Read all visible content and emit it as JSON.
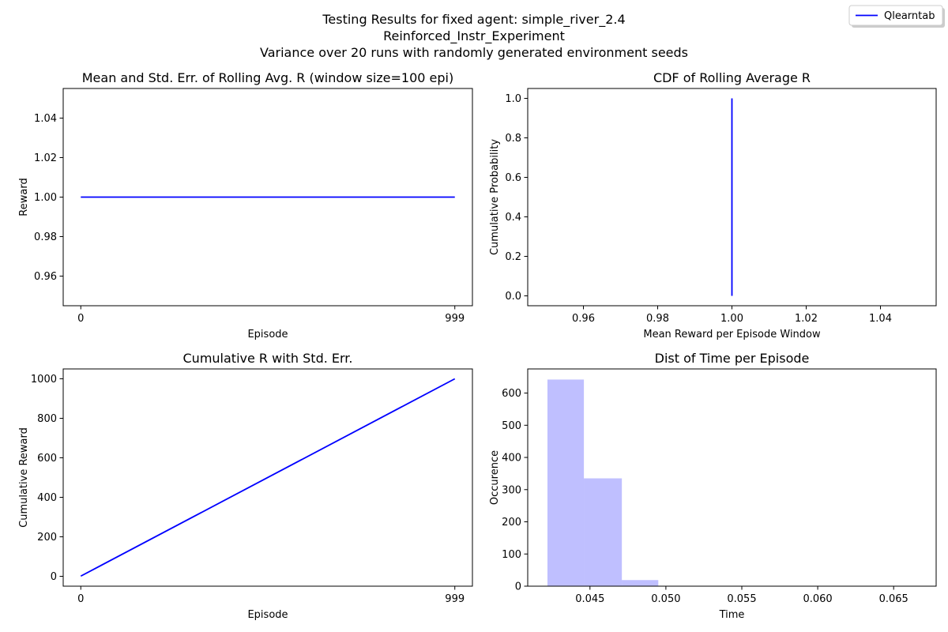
{
  "figure": {
    "suptitle_lines": [
      "Testing Results for fixed agent: simple_river_2.4",
      "Reinforced_Instr_Experiment",
      "Variance over 20 runs with randomly generated environment seeds"
    ],
    "legend": [
      {
        "label": "Qlearntab",
        "color": "#0000ff"
      }
    ]
  },
  "chart_data": [
    {
      "type": "line",
      "title": "Mean and Std. Err. of Rolling Avg. R (window size=100 epi)",
      "xlabel": "Episode",
      "ylabel": "Reward",
      "xlim": [
        -47,
        1046
      ],
      "ylim": [
        0.945,
        1.055
      ],
      "xticks": [
        0,
        999
      ],
      "xticklabels": [
        "0",
        "999"
      ],
      "yticks": [
        0.96,
        0.98,
        1.0,
        1.02,
        1.04
      ],
      "yticklabels": [
        "0.96",
        "0.98",
        "1.00",
        "1.02",
        "1.04"
      ],
      "grid": false,
      "series": [
        {
          "name": "Qlearntab",
          "color": "#0000ff",
          "x": [
            0,
            999
          ],
          "y": [
            1.0,
            1.0
          ]
        }
      ]
    },
    {
      "type": "line",
      "title": "CDF of Rolling Average R",
      "xlabel": "Mean Reward per Episode Window",
      "ylabel": "Cumulative Probability",
      "xlim": [
        0.945,
        1.055
      ],
      "ylim": [
        -0.05,
        1.05
      ],
      "xticks": [
        0.96,
        0.98,
        1.0,
        1.02,
        1.04
      ],
      "xticklabels": [
        "0.96",
        "0.98",
        "1.00",
        "1.02",
        "1.04"
      ],
      "yticks": [
        0,
        0.2,
        0.4,
        0.6,
        0.8,
        1.0
      ],
      "yticklabels": [
        "0.0",
        "0.2",
        "0.4",
        "0.6",
        "0.8",
        "1.0"
      ],
      "grid": false,
      "series": [
        {
          "name": "Qlearntab",
          "color": "#0000ff",
          "x": [
            1.0,
            1.0
          ],
          "y": [
            0.0,
            1.0
          ]
        }
      ]
    },
    {
      "type": "line",
      "title": "Cumulative R with Std. Err.",
      "xlabel": "Episode",
      "ylabel": "Cumulative Reward",
      "xlim": [
        -47,
        1046
      ],
      "ylim": [
        -50,
        1050
      ],
      "xticks": [
        0,
        999
      ],
      "xticklabels": [
        "0",
        "999"
      ],
      "yticks": [
        0,
        200,
        400,
        600,
        800,
        1000
      ],
      "yticklabels": [
        "0",
        "200",
        "400",
        "600",
        "800",
        "1000"
      ],
      "grid": false,
      "series": [
        {
          "name": "Qlearntab",
          "color": "#0000ff",
          "x": [
            0,
            999
          ],
          "y": [
            1,
            1000
          ]
        }
      ]
    },
    {
      "type": "bar",
      "title": "Dist of Time per Episode",
      "xlabel": "Time",
      "ylabel": "Occurence",
      "xlim": [
        0.0409,
        0.0678
      ],
      "ylim": [
        0,
        675
      ],
      "xticks": [
        0.045,
        0.05,
        0.055,
        0.06,
        0.065
      ],
      "xticklabels": [
        "0.045",
        "0.050",
        "0.055",
        "0.060",
        "0.065"
      ],
      "yticks": [
        0,
        100,
        200,
        300,
        400,
        500,
        600
      ],
      "yticklabels": [
        "0",
        "100",
        "200",
        "300",
        "400",
        "500",
        "600"
      ],
      "grid": false,
      "color": "#0000ff",
      "opacity": 0.25,
      "bin_edges": [
        0.0422,
        0.0446,
        0.0471,
        0.0495,
        0.052,
        0.0544,
        0.0569,
        0.0593,
        0.0618,
        0.0642,
        0.0667
      ],
      "counts": [
        642,
        335,
        19,
        1,
        0,
        0,
        0,
        1,
        0,
        1
      ]
    }
  ]
}
